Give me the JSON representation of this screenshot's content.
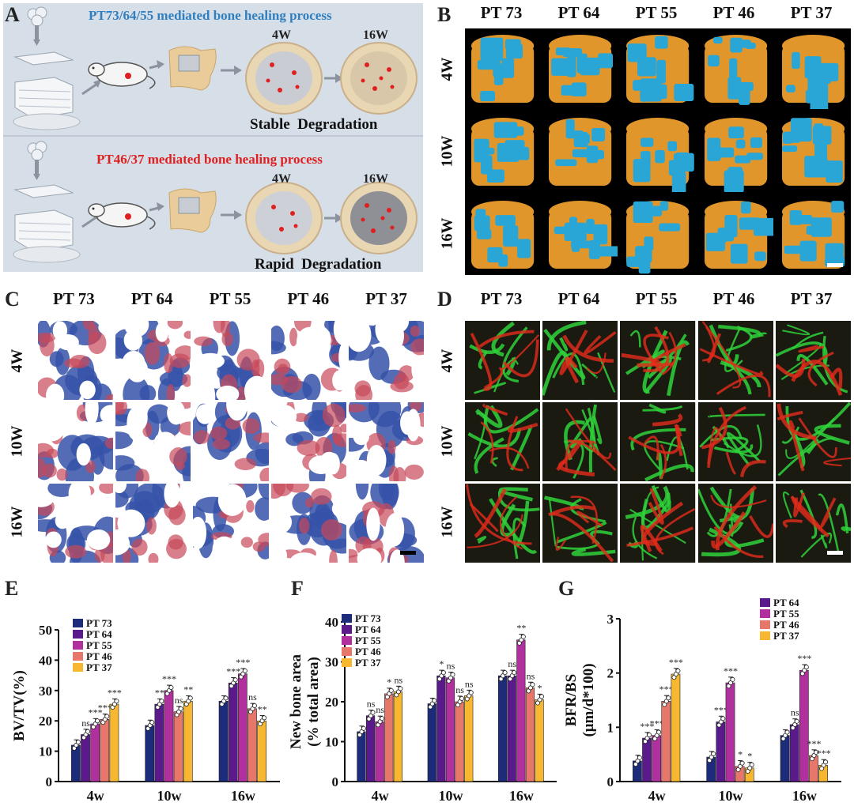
{
  "panels": {
    "A": {
      "letter": "A",
      "title_top": "PT73/64/55 mediated bone healing process",
      "title_bottom": "PT46/37 mediated bone healing process",
      "t1": "4W",
      "t2": "16W",
      "t3": "4W",
      "t4": "16W",
      "caption_top": "Stable  Degradation",
      "caption_bottom": "Rapid  Degradation",
      "colors": {
        "bg": "#d6dee8",
        "blue_title": "#2f7fc0",
        "red_title": "#e02020"
      }
    },
    "B": {
      "letter": "B"
    },
    "C": {
      "letter": "C"
    },
    "D": {
      "letter": "D"
    },
    "E": {
      "letter": "E"
    },
    "F": {
      "letter": "F"
    },
    "G": {
      "letter": "G"
    }
  },
  "groups": [
    "PT 73",
    "PT 64",
    "PT 55",
    "PT 46",
    "PT 37"
  ],
  "timepoints": [
    "4W",
    "10W",
    "16W"
  ],
  "colors": {
    "PT 73": "#1c2b7a",
    "PT 64": "#5a1a8c",
    "PT 55": "#b0319e",
    "PT 46": "#e8776b",
    "PT 37": "#f7b731",
    "microct_bone": "#e0962b",
    "microct_scaffold": "#29a6d6",
    "stain_blue": "#3552a8",
    "stain_red": "#c8485a",
    "fluor_green": "#2fd23a",
    "fluor_red": "#e32a1a"
  },
  "chart_data": [
    {
      "type": "bar",
      "panel": "E",
      "categories": [
        "4w",
        "10w",
        "16w"
      ],
      "ylabel": "BV/TV(%)",
      "ylim": [
        0,
        50
      ],
      "yticks": [
        0,
        10,
        20,
        30,
        40,
        50
      ],
      "series": [
        {
          "name": "PT 73",
          "values": [
            12,
            18.5,
            26.5
          ],
          "sig": [
            "",
            "",
            ""
          ]
        },
        {
          "name": "PT 64",
          "values": [
            15.5,
            25.5,
            32.5
          ],
          "sig": [
            "ns",
            "**",
            "***"
          ]
        },
        {
          "name": "PT 55",
          "values": [
            19,
            30,
            35.5
          ],
          "sig": [
            "***",
            "***",
            "***"
          ]
        },
        {
          "name": "PT 46",
          "values": [
            20.5,
            23,
            24
          ],
          "sig": [
            "***",
            "ns",
            "ns"
          ]
        },
        {
          "name": "PT 37",
          "values": [
            25.5,
            26.5,
            20
          ],
          "sig": [
            "***",
            "**",
            "**"
          ]
        }
      ]
    },
    {
      "type": "bar",
      "panel": "F",
      "categories": [
        "4w",
        "10w",
        "16w"
      ],
      "ylabel_line1": "New bone area",
      "ylabel_line2": "(% total area)",
      "ylim": [
        0,
        40
      ],
      "yticks": [
        0,
        10,
        20,
        30,
        40
      ],
      "series": [
        {
          "name": "PT 73",
          "values": [
            12.5,
            19.5,
            26.5
          ],
          "sig": [
            "",
            "",
            ""
          ]
        },
        {
          "name": "PT 64",
          "values": [
            16.5,
            26.5,
            26.5
          ],
          "sig": [
            "ns",
            "*",
            "ns"
          ]
        },
        {
          "name": "PT 55",
          "values": [
            15,
            26,
            35.5
          ],
          "sig": [
            "ns",
            "ns",
            "**"
          ]
        },
        {
          "name": "PT 46",
          "values": [
            22,
            20,
            23.5
          ],
          "sig": [
            "*",
            "ns",
            "ns"
          ]
        },
        {
          "name": "PT 37",
          "values": [
            22.5,
            21.5,
            20.5
          ],
          "sig": [
            "ns",
            "ns",
            "*"
          ]
        }
      ]
    },
    {
      "type": "bar",
      "panel": "G",
      "categories": [
        "4w",
        "10w",
        "16w"
      ],
      "ylabel_line1": "BFR/BS",
      "ylabel_line2": "(μm/d*100)",
      "ylim": [
        0,
        3
      ],
      "yticks": [
        0,
        1,
        2,
        3
      ],
      "series": [
        {
          "name": "PT 73",
          "values": [
            0.38,
            0.45,
            0.85
          ],
          "sig": [
            "",
            "",
            ""
          ]
        },
        {
          "name": "PT 64",
          "values": [
            0.8,
            1.1,
            1.05
          ],
          "sig": [
            "***",
            "***",
            "ns"
          ]
        },
        {
          "name": "PT 55",
          "values": [
            0.85,
            1.82,
            2.05
          ],
          "sig": [
            "***",
            "***",
            "***"
          ]
        },
        {
          "name": "PT 46",
          "values": [
            1.48,
            0.28,
            0.48
          ],
          "sig": [
            "***",
            "*",
            "***"
          ]
        },
        {
          "name": "PT 37",
          "values": [
            1.98,
            0.25,
            0.3
          ],
          "sig": [
            "***",
            "*",
            "***"
          ]
        }
      ]
    }
  ]
}
